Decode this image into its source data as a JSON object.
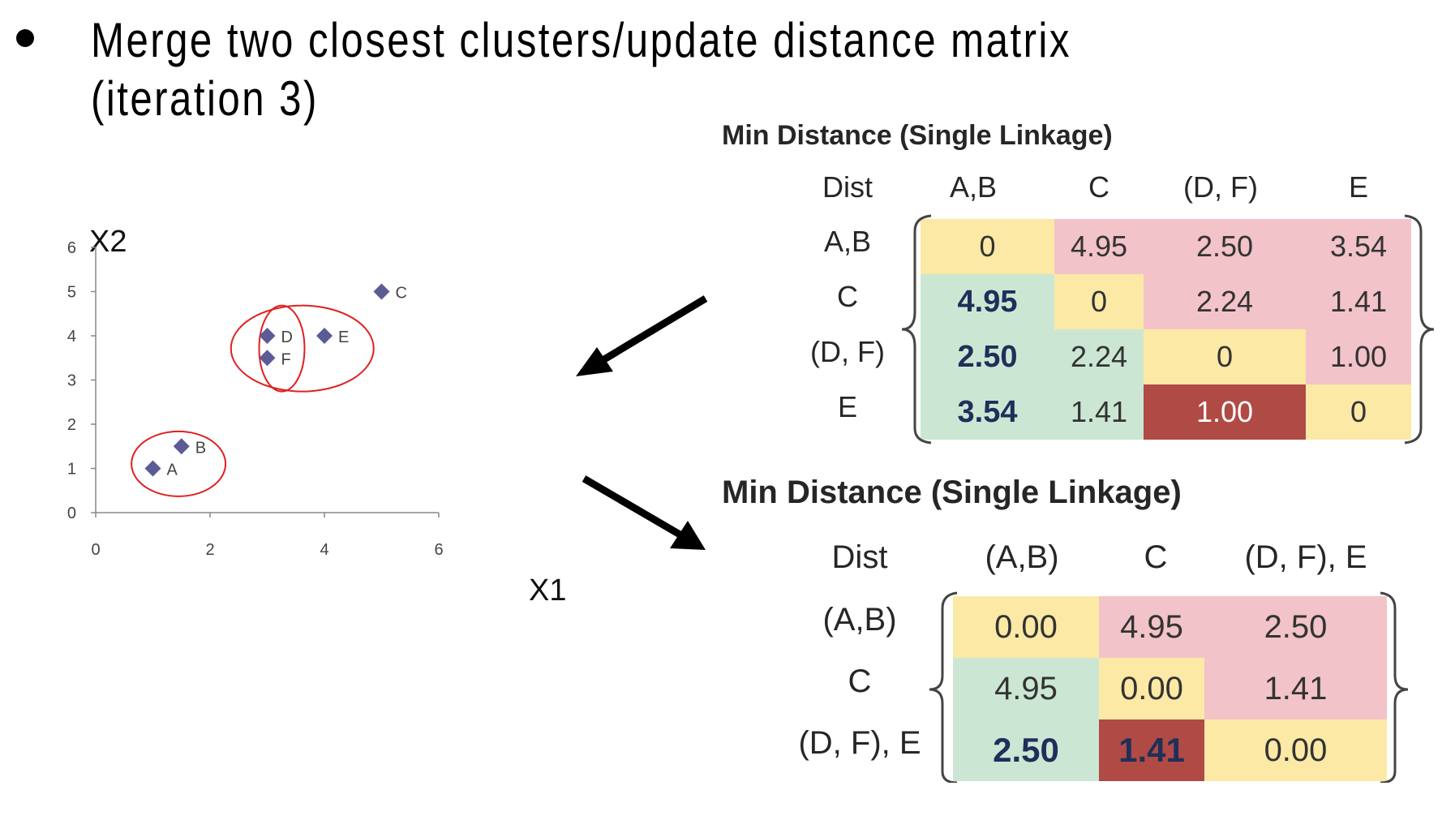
{
  "bullet": {
    "text": "Merge two closest clusters/update distance matrix (iteration 3)"
  },
  "chart_data": {
    "type": "scatter",
    "xlabel": "X1",
    "ylabel": "X2",
    "xlim": [
      0,
      6
    ],
    "ylim": [
      0,
      6
    ],
    "xticks": [
      "0",
      "2",
      "4",
      "6"
    ],
    "yticks": [
      "0",
      "1",
      "2",
      "3",
      "4",
      "5",
      "6"
    ],
    "points": [
      {
        "label": "A",
        "x": 1,
        "y": 1
      },
      {
        "label": "B",
        "x": 1.5,
        "y": 1.5
      },
      {
        "label": "C",
        "x": 5,
        "y": 5
      },
      {
        "label": "D",
        "x": 3,
        "y": 4
      },
      {
        "label": "E",
        "x": 4,
        "y": 4
      },
      {
        "label": "F",
        "x": 3,
        "y": 3.5
      }
    ],
    "marker_color": "#5b5b96",
    "cluster_color": "#e02020"
  },
  "matrix1": {
    "title": "Min Distance (Single Linkage)",
    "corner": "Dist",
    "cols": [
      "A,B",
      "C",
      "(D, F)",
      "E"
    ],
    "rows": [
      {
        "label": "A,B",
        "cells": [
          "0",
          "4.95",
          "2.50",
          "3.54"
        ]
      },
      {
        "label": "C",
        "cells": [
          "4.95",
          "0",
          "2.24",
          "1.41"
        ]
      },
      {
        "label": "(D, F)",
        "cells": [
          "2.50",
          "2.24",
          "0",
          "1.00"
        ]
      },
      {
        "label": "E",
        "cells": [
          "3.54",
          "1.41",
          "1.00",
          "0"
        ]
      }
    ]
  },
  "matrix2": {
    "title": "Min Distance (Single Linkage)",
    "corner": "Dist",
    "cols": [
      "(A,B)",
      "C",
      "(D, F), E"
    ],
    "rows": [
      {
        "label": "(A,B)",
        "cells": [
          "0.00",
          "4.95",
          "2.50"
        ]
      },
      {
        "label": "C",
        "cells": [
          "4.95",
          "0.00",
          "1.41"
        ]
      },
      {
        "label": "(D, F), E",
        "cells": [
          "2.50",
          "1.41",
          "0.00"
        ]
      }
    ]
  },
  "colors": {
    "yellow": "#fbe9a5",
    "pink": "#f2c3c8",
    "green": "#cbe7d3",
    "dark_red": "#b04a45"
  }
}
